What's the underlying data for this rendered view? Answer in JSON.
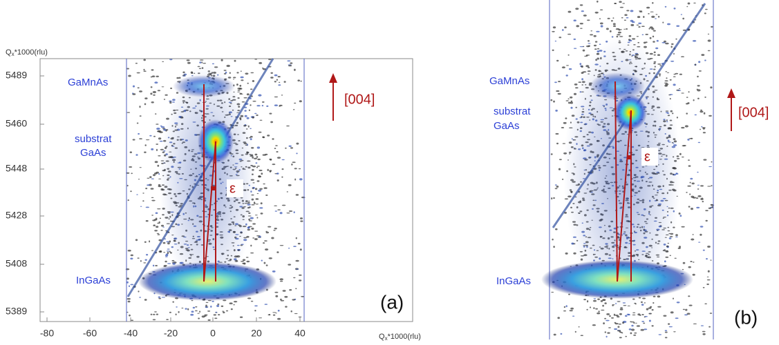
{
  "panel_a": {
    "y_axis_label": {
      "main": "Q",
      "sub": "x",
      "rest": "*1000(rlu)"
    },
    "x_axis_label": {
      "main": "Q",
      "sub": "x",
      "rest": "*1000(rlu)"
    },
    "yticks": [
      "5489",
      "5460",
      "5448",
      "5428",
      "5408",
      "5389"
    ],
    "xticks": [
      "-80",
      "-60",
      "-40",
      "-20",
      "0",
      "20",
      "40"
    ],
    "layer_labels": {
      "gamnas": "GaMnAs",
      "substrat": "substrat",
      "gaas": "GaAs",
      "ingaas": "InGaAs"
    },
    "strain": "ε",
    "direction": "[004]",
    "panel": "(a)"
  },
  "panel_b": {
    "layer_labels": {
      "gamnas": "GaMnAs",
      "substrat": "substrat",
      "gaas": "GaAs",
      "ingaas": "InGaAs"
    },
    "strain": "ε",
    "direction": "[004]",
    "panel": "(b)"
  }
}
